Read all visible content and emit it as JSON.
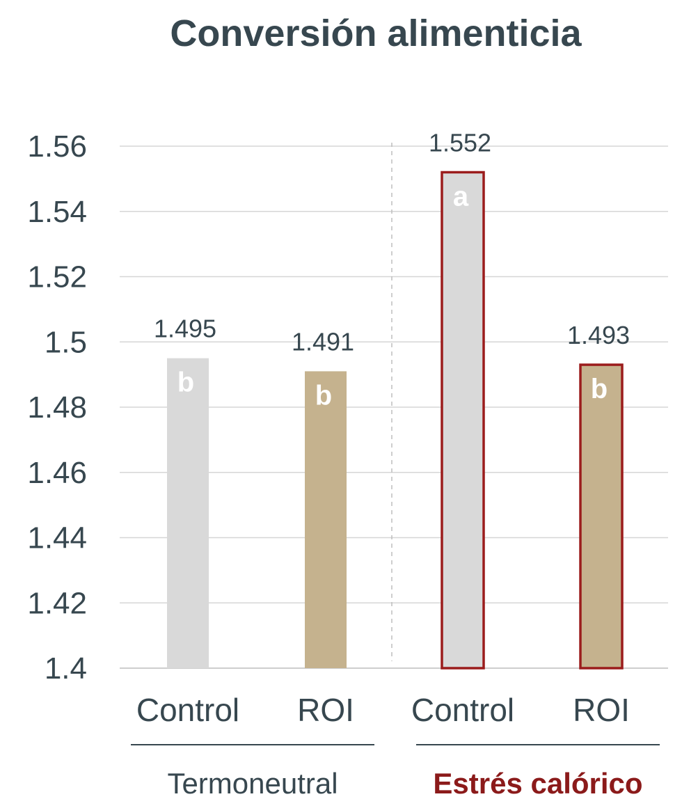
{
  "chart_data": {
    "type": "bar",
    "title": "Conversión alimenticia",
    "xlabel": "",
    "ylabel": "",
    "ylim": [
      1.4,
      1.56
    ],
    "yticks": [
      1.56,
      1.54,
      1.52,
      1.5,
      1.48,
      1.46,
      1.44,
      1.42,
      1.4
    ],
    "ytick_labels": [
      "1.56",
      "1.54",
      "1.52",
      "1.5",
      "1.48",
      "1.46",
      "1.44",
      "1.42",
      "1.4"
    ],
    "grid": true,
    "groups": [
      {
        "label": "Termoneutral",
        "color": "#37474f"
      },
      {
        "label": "Estrés calórico",
        "color": "#8b1a1a"
      }
    ],
    "bars": [
      {
        "category": "Control",
        "group": 0,
        "value": 1.495,
        "value_label": "1.495",
        "letter": "b",
        "fill": "#d9d9d9",
        "outline": ""
      },
      {
        "category": "ROI",
        "group": 0,
        "value": 1.491,
        "value_label": "1.491",
        "letter": "b",
        "fill": "#c5b28e",
        "outline": ""
      },
      {
        "category": "Control",
        "group": 1,
        "value": 1.552,
        "value_label": "1.552",
        "letter": "a",
        "fill": "#d9d9d9",
        "outline": "#9b1c1c"
      },
      {
        "category": "ROI",
        "group": 1,
        "value": 1.493,
        "value_label": "1.493",
        "letter": "b",
        "fill": "#c5b28e",
        "outline": "#9b1c1c"
      }
    ]
  }
}
